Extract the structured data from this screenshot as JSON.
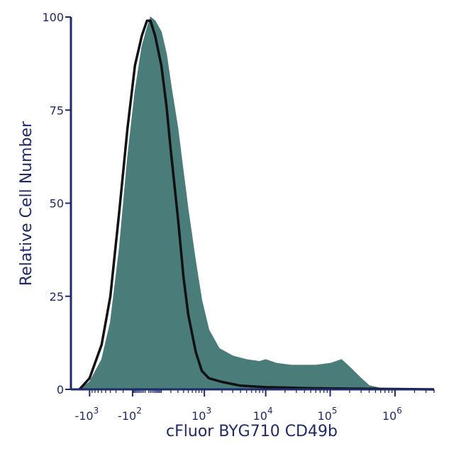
{
  "chart_data": {
    "type": "area",
    "title": "",
    "xlabel": "cFluor BYG710 CD49b",
    "ylabel": "Relative Cell Number",
    "x_scale": "biexponential",
    "ylim": [
      0,
      100
    ],
    "grid": false,
    "legend": "none",
    "y_ticks": [
      {
        "value": 0,
        "label": "0"
      },
      {
        "value": 25,
        "label": "25"
      },
      {
        "value": 50,
        "label": "50"
      },
      {
        "value": 75,
        "label": "75"
      },
      {
        "value": 100,
        "label": "100"
      }
    ],
    "x_ticks": [
      {
        "value": -1000,
        "base": "-10",
        "exp": "3"
      },
      {
        "value": -100,
        "base": "-10",
        "exp": "2"
      },
      {
        "value": 1000,
        "base": "10",
        "exp": "3"
      },
      {
        "value": 10000,
        "base": "10",
        "exp": "4"
      },
      {
        "value": 100000,
        "base": "10",
        "exp": "5"
      },
      {
        "value": 1000000,
        "base": "10",
        "exp": "6"
      }
    ],
    "series": [
      {
        "style": "filled",
        "color": "#4a7c7a",
        "points": [
          [
            -1500,
            0
          ],
          [
            -1000,
            2
          ],
          [
            -600,
            8
          ],
          [
            -400,
            18
          ],
          [
            -250,
            38
          ],
          [
            -150,
            62
          ],
          [
            -80,
            80
          ],
          [
            -30,
            92
          ],
          [
            0,
            97
          ],
          [
            20,
            100
          ],
          [
            50,
            99
          ],
          [
            100,
            96
          ],
          [
            150,
            90
          ],
          [
            200,
            82
          ],
          [
            300,
            70
          ],
          [
            400,
            58
          ],
          [
            500,
            48
          ],
          [
            700,
            34
          ],
          [
            900,
            24
          ],
          [
            1200,
            16
          ],
          [
            1800,
            11
          ],
          [
            3000,
            9
          ],
          [
            5000,
            8
          ],
          [
            8000,
            7.5
          ],
          [
            10000,
            8
          ],
          [
            15000,
            7
          ],
          [
            25000,
            6.5
          ],
          [
            40000,
            6.5
          ],
          [
            60000,
            6.5
          ],
          [
            100000,
            7
          ],
          [
            150000,
            8
          ],
          [
            200000,
            6
          ],
          [
            300000,
            3
          ],
          [
            400000,
            1
          ],
          [
            600000,
            0.3
          ],
          [
            4000000,
            0
          ]
        ]
      },
      {
        "style": "line",
        "color": "#111111",
        "points": [
          [
            -1500,
            0
          ],
          [
            -1000,
            3
          ],
          [
            -600,
            12
          ],
          [
            -400,
            25
          ],
          [
            -250,
            48
          ],
          [
            -150,
            70
          ],
          [
            -80,
            87
          ],
          [
            -30,
            95
          ],
          [
            0,
            99
          ],
          [
            20,
            99
          ],
          [
            50,
            95
          ],
          [
            100,
            87
          ],
          [
            150,
            76
          ],
          [
            200,
            64
          ],
          [
            300,
            46
          ],
          [
            400,
            30
          ],
          [
            500,
            20
          ],
          [
            700,
            10
          ],
          [
            900,
            5
          ],
          [
            1200,
            3
          ],
          [
            2000,
            2
          ],
          [
            4000,
            1
          ],
          [
            10000,
            0.6
          ],
          [
            50000,
            0.3
          ],
          [
            200000,
            0.2
          ],
          [
            4000000,
            0
          ]
        ]
      }
    ]
  }
}
